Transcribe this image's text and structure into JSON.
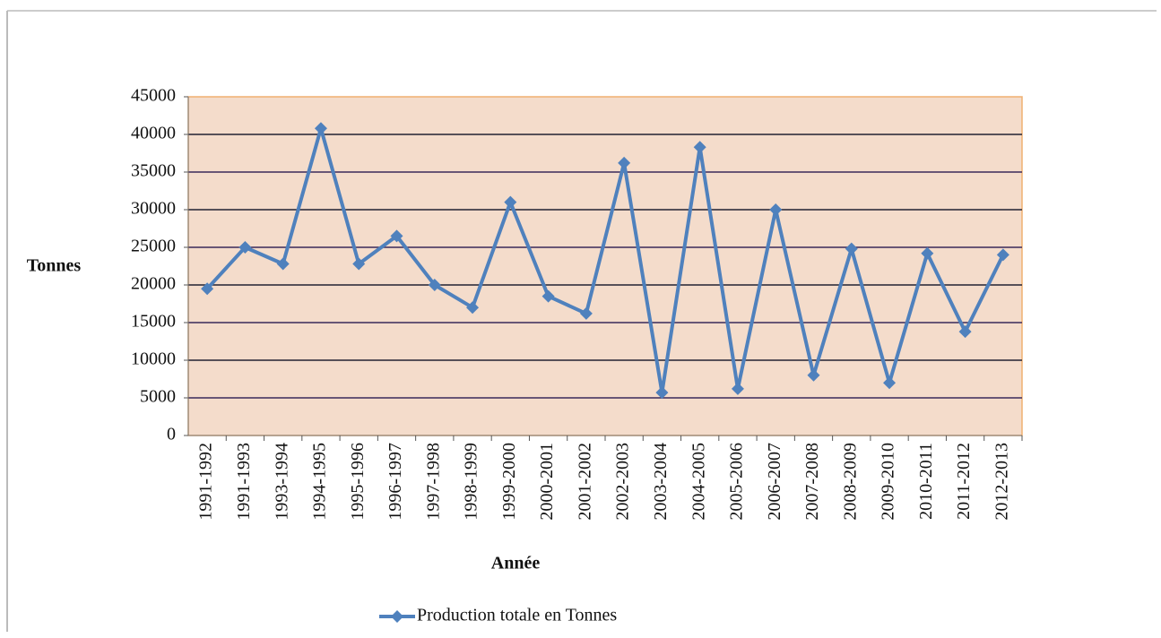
{
  "chart_data": {
    "type": "line",
    "y_label": "Tonnes",
    "x_label": "Année",
    "categories": [
      "1991-1992",
      "1991-1993",
      "1993-1994",
      "1994-1995",
      "1995-1996",
      "1996-1997",
      "1997-1998",
      "1998-1999",
      "1999-2000",
      "2000-2001",
      "2001-2002",
      "2002-2003",
      "2003-2004",
      "2004-2005",
      "2005-2006",
      "2006-2007",
      "2007-2008",
      "2008-2009",
      "2009-2010",
      "2010-2011",
      "2011-2012",
      "2012-2013"
    ],
    "series": [
      {
        "name": "Production totale en Tonnes",
        "color": "#4f81bd",
        "values": [
          19500,
          25000,
          22800,
          40800,
          22800,
          26500,
          20000,
          17000,
          31000,
          18500,
          16200,
          36200,
          5700,
          38300,
          6200,
          30000,
          8000,
          24800,
          7000,
          24200,
          13800,
          24000
        ]
      }
    ],
    "ylim": [
      0,
      45000
    ],
    "yticks": [
      0,
      5000,
      10000,
      15000,
      20000,
      25000,
      30000,
      35000,
      40000,
      45000
    ],
    "grid": true,
    "legend": "bottom"
  }
}
